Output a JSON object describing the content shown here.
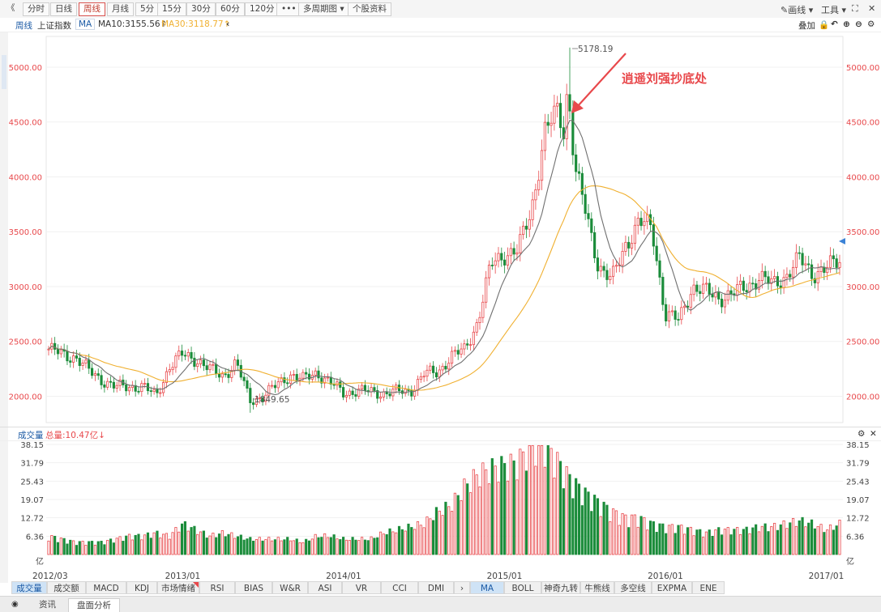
{
  "toolbar": {
    "collapse_icon": "《",
    "periods": [
      "分时",
      "日线",
      "周线",
      "月线",
      "5分",
      "15分",
      "30分",
      "60分",
      "120分"
    ],
    "active_period": "周线",
    "more_label": "•••",
    "multi_period_label": "多周期图",
    "stock_info_label": "个股资料",
    "draw_label": "画线",
    "tools_label": "工具",
    "expand_icon": "⛶",
    "close_icon": "✕"
  },
  "infobar": {
    "period": "周线",
    "index_name": "上证指数",
    "ma_label": "MA",
    "ma10": "MA10:3155.56↑",
    "ma30": "MA30:3118.77↑",
    "back_icon": "‹",
    "overlay_label": "叠加",
    "icons": [
      "lock-icon",
      "undo-icon",
      "zoom-in-icon",
      "zoom-out-icon",
      "settings-icon"
    ]
  },
  "volume_bar": {
    "title": "成交量",
    "total": "总量:10.47亿↓"
  },
  "indicator_tabs": [
    "成交量",
    "成交额",
    "MACD",
    "KDJ",
    "市场情绪",
    "RSI",
    "BIAS",
    "W&R",
    "ASI",
    "VR",
    "CCI",
    "DMI",
    "›",
    "MA",
    "BOLL",
    "神奇九转",
    "牛熊线",
    "多空线",
    "EXPMA",
    "ENE"
  ],
  "active_indicator_tabs": [
    "成交量",
    "MA"
  ],
  "bottom_tabs": [
    "资讯",
    "盘面分析"
  ],
  "active_bottom_tab": "盘面分析",
  "chart_data": {
    "type": "candlestick",
    "price_axis_ticks": [
      "5000.00",
      "4500.00",
      "4000.00",
      "3500.00",
      "3000.00",
      "2500.00",
      "2000.00"
    ],
    "price_ylim": [
      1760,
      5280
    ],
    "volume_axis_ticks": [
      "38.15",
      "31.79",
      "25.43",
      "19.07",
      "12.72",
      "6.36",
      "亿"
    ],
    "volume_ylim": [
      0,
      38.15
    ],
    "x_labels": [
      "2012/03",
      "2013/01",
      "2014/01",
      "2015/01",
      "2016/01",
      "2017/01"
    ],
    "annotations": {
      "high": "5178.19",
      "low": "1849.65",
      "callout": "逍遥刘强抄底处"
    },
    "close_points": [
      [
        "2012-03",
        2430
      ],
      [
        "2012-04",
        2380
      ],
      [
        "2012-05",
        2360
      ],
      [
        "2012-06",
        2230
      ],
      [
        "2012-07",
        2150
      ],
      [
        "2012-08",
        2080
      ],
      [
        "2012-09",
        2090
      ],
      [
        "2012-10",
        2090
      ],
      [
        "2012-11",
        2000
      ],
      [
        "2012-12",
        2270
      ],
      [
        "2013-01",
        2380
      ],
      [
        "2013-02",
        2340
      ],
      [
        "2013-03",
        2240
      ],
      [
        "2013-04",
        2190
      ],
      [
        "2013-05",
        2300
      ],
      [
        "2013-06",
        1960
      ],
      [
        "2013-07",
        2000
      ],
      [
        "2013-08",
        2100
      ],
      [
        "2013-09",
        2200
      ],
      [
        "2013-10",
        2150
      ],
      [
        "2013-11",
        2220
      ],
      [
        "2013-12",
        2120
      ],
      [
        "2014-01",
        2030
      ],
      [
        "2014-02",
        2050
      ],
      [
        "2014-03",
        2040
      ],
      [
        "2014-04",
        2030
      ],
      [
        "2014-05",
        2040
      ],
      [
        "2014-06",
        2050
      ],
      [
        "2014-07",
        2200
      ],
      [
        "2014-08",
        2220
      ],
      [
        "2014-09",
        2360
      ],
      [
        "2014-10",
        2420
      ],
      [
        "2014-11",
        2680
      ],
      [
        "2014-12",
        3200
      ],
      [
        "2015-01",
        3300
      ],
      [
        "2015-02",
        3320
      ],
      [
        "2015-03",
        3700
      ],
      [
        "2015-04",
        4400
      ],
      [
        "2015-05",
        4600
      ],
      [
        "2015-06",
        4200
      ],
      [
        "2015-07",
        3700
      ],
      [
        "2015-08",
        3200
      ],
      [
        "2015-09",
        3050
      ],
      [
        "2015-10",
        3380
      ],
      [
        "2015-11",
        3580
      ],
      [
        "2015-12",
        3540
      ],
      [
        "2016-01",
        2740
      ],
      [
        "2016-02",
        2690
      ],
      [
        "2016-03",
        3000
      ],
      [
        "2016-04",
        2950
      ],
      [
        "2016-05",
        2900
      ],
      [
        "2016-06",
        2930
      ],
      [
        "2016-07",
        3000
      ],
      [
        "2016-08",
        3080
      ],
      [
        "2016-09",
        3020
      ],
      [
        "2016-10",
        3100
      ],
      [
        "2016-11",
        3250
      ],
      [
        "2016-12",
        3120
      ],
      [
        "2017-01",
        3160
      ],
      [
        "2017-02",
        3240
      ]
    ],
    "volume_levels": [
      6,
      5,
      4,
      4,
      4,
      5,
      6,
      6,
      7,
      6,
      10,
      8,
      6,
      7,
      6,
      5,
      5,
      5,
      5,
      4,
      6,
      6,
      5,
      5,
      5,
      7,
      8,
      9,
      10,
      14,
      16,
      22,
      26,
      28,
      29,
      30,
      36,
      36,
      30,
      24,
      20,
      17,
      14,
      12,
      12,
      10,
      9,
      9,
      8,
      7,
      8,
      8,
      8,
      9,
      9,
      10,
      11,
      10,
      8,
      10
    ],
    "series": [
      {
        "name": "MA10",
        "color": "#707070"
      },
      {
        "name": "MA30",
        "color": "#f0b030"
      }
    ]
  },
  "colors": {
    "up": "#e8484b",
    "down": "#1b8c3a",
    "price_axis": "#e8484b",
    "accent_blue": "#1b5aa5",
    "callout": "#e8484b"
  }
}
